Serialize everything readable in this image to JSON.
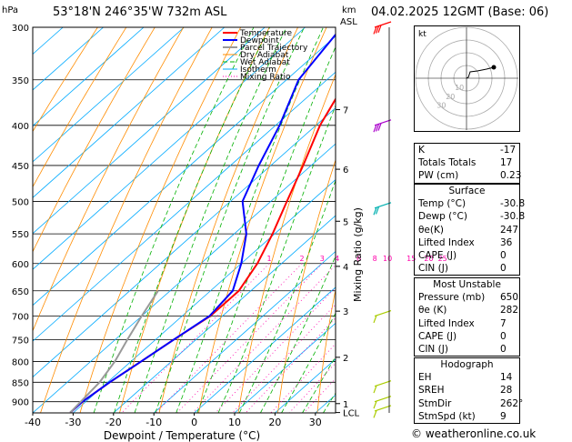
{
  "header": {
    "location": "53°18'N 246°35'W 732m ASL",
    "datetime": "04.02.2025 12GMT (Base: 06)",
    "left_unit": "hPa",
    "right_unit_km": "km",
    "right_unit_asl": "ASL"
  },
  "footer": {
    "copyright": "© weatheronline.co.uk"
  },
  "chart_data": {
    "type": "line",
    "title": "",
    "xlabel": "Dewpoint / Temperature (°C)",
    "ylabel": "hPa",
    "right_axis_label": "Mixing Ratio (g/kg)",
    "xlim": [
      -40,
      35
    ],
    "x_ticks": [
      -40,
      -30,
      -20,
      -10,
      0,
      10,
      20,
      30
    ],
    "y_ticks": [
      300,
      350,
      400,
      450,
      500,
      550,
      600,
      650,
      700,
      750,
      800,
      850,
      900
    ],
    "ylim": [
      300,
      930
    ],
    "skew_deg_per_log_p": 95,
    "km_ticks": [
      {
        "label": "7",
        "p": 382
      },
      {
        "label": "6",
        "p": 455
      },
      {
        "label": "5",
        "p": 530
      },
      {
        "label": "4",
        "p": 605
      },
      {
        "label": "3",
        "p": 690
      },
      {
        "label": "2",
        "p": 790
      },
      {
        "label": "1",
        "p": 905
      },
      {
        "label": "LCL",
        "p": 929
      }
    ],
    "mixing_ratio_values": [
      "1",
      "2",
      "3",
      "4",
      "6",
      "8",
      "10",
      "15",
      "20",
      "25"
    ],
    "legend": [
      "Temperature",
      "Dewpoint",
      "Parcel Trajectory",
      "Dry Adiabat",
      "Wet Adiabat",
      "Isotherm",
      "Mixing Ratio"
    ],
    "legend_placement": "top-left",
    "colors": {
      "temperature": "#ff0000",
      "dewpoint": "#0000ff",
      "parcel": "#999999",
      "dry_adiabat": "#ff8c00",
      "wet_adiabat": "#00b000",
      "isotherm": "#00aaff",
      "mixing_ratio": "#ff00aa"
    },
    "series": [
      {
        "name": "Temperature",
        "points": [
          [
            929,
            -30.8
          ],
          [
            900,
            -30.8
          ],
          [
            850,
            -29.5
          ],
          [
            800,
            -27.5
          ],
          [
            750,
            -25.5
          ],
          [
            700,
            -23
          ],
          [
            650,
            -23
          ],
          [
            600,
            -26
          ],
          [
            550,
            -30.5
          ],
          [
            500,
            -36
          ],
          [
            450,
            -42
          ],
          [
            400,
            -49
          ],
          [
            350,
            -55
          ],
          [
            300,
            -61
          ]
        ]
      },
      {
        "name": "Dewpoint",
        "points": [
          [
            929,
            -30.8
          ],
          [
            900,
            -30.8
          ],
          [
            850,
            -29.5
          ],
          [
            800,
            -27.5
          ],
          [
            750,
            -25.5
          ],
          [
            700,
            -23.2
          ],
          [
            650,
            -24.5
          ],
          [
            600,
            -30
          ],
          [
            550,
            -37
          ],
          [
            500,
            -47
          ],
          [
            450,
            -53
          ],
          [
            400,
            -59
          ],
          [
            350,
            -67
          ],
          [
            300,
            -71
          ]
        ]
      },
      {
        "name": "Parcel Trajectory",
        "points": [
          [
            929,
            -30.8
          ],
          [
            850,
            -32
          ],
          [
            800,
            -34
          ],
          [
            750,
            -37
          ],
          [
            700,
            -40
          ],
          [
            650,
            -43
          ]
        ]
      }
    ],
    "wind_barbs": [
      {
        "p": 300,
        "color": "#ff0000",
        "flags": 0,
        "full_barbs": 3
      },
      {
        "p": 400,
        "color": "#aa00cc",
        "flags": 0,
        "full_barbs": 3
      },
      {
        "p": 510,
        "color": "#00b0b0",
        "flags": 0,
        "full_barbs": 2
      },
      {
        "p": 700,
        "color": "#aacc00",
        "flags": 0,
        "full_barbs": 1
      },
      {
        "p": 860,
        "color": "#aacc00",
        "flags": 0,
        "full_barbs": 1
      },
      {
        "p": 900,
        "color": "#aacc00",
        "flags": 0,
        "full_barbs": 1
      },
      {
        "p": 925,
        "color": "#aacc00",
        "flags": 0,
        "full_barbs": 1
      }
    ]
  },
  "hodograph": {
    "label": "kt",
    "ring_labels": [
      "10",
      "20",
      "30"
    ],
    "trace_color": "#000000"
  },
  "indices": [
    {
      "label": "K",
      "value": "-17"
    },
    {
      "label": "Totals Totals",
      "value": "17"
    },
    {
      "label": "PW (cm)",
      "value": "0.23"
    }
  ],
  "surface": {
    "title": "Surface",
    "rows": [
      {
        "label": "Temp (°C)",
        "value": "-30.8"
      },
      {
        "label": "Dewp (°C)",
        "value": "-30.8"
      },
      {
        "label": "θe(K)",
        "value": "247"
      },
      {
        "label": "Lifted Index",
        "value": "36"
      },
      {
        "label": "CAPE (J)",
        "value": "0"
      },
      {
        "label": "CIN (J)",
        "value": "0"
      }
    ]
  },
  "most_unstable": {
    "title": "Most Unstable",
    "rows": [
      {
        "label": "Pressure (mb)",
        "value": "650"
      },
      {
        "label": "θe (K)",
        "value": "282"
      },
      {
        "label": "Lifted Index",
        "value": "7"
      },
      {
        "label": "CAPE (J)",
        "value": "0"
      },
      {
        "label": "CIN (J)",
        "value": "0"
      }
    ]
  },
  "hodograph_table": {
    "title": "Hodograph",
    "rows": [
      {
        "label": "EH",
        "value": "14"
      },
      {
        "label": "SREH",
        "value": "28"
      },
      {
        "label": "StmDir",
        "value": "262°"
      },
      {
        "label": "StmSpd (kt)",
        "value": "9"
      }
    ]
  }
}
